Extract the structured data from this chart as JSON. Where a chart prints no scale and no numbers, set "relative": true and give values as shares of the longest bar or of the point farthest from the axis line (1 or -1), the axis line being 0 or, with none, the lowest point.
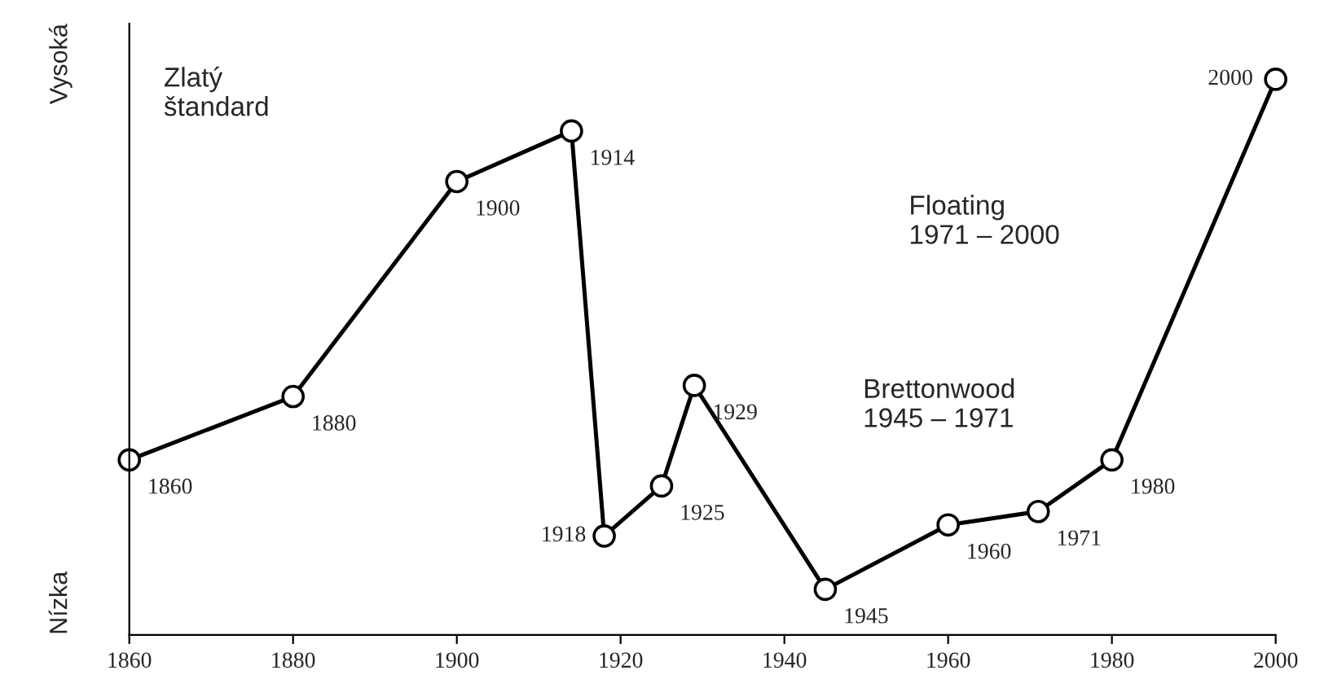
{
  "chart_data": {
    "type": "line",
    "relative": true,
    "x": [
      1860,
      1880,
      1900,
      1914,
      1918,
      1925,
      1929,
      1945,
      1960,
      1971,
      1980,
      2000
    ],
    "values": [
      0.315,
      0.429,
      0.816,
      0.907,
      0.178,
      0.268,
      0.449,
      0.082,
      0.198,
      0.222,
      0.315,
      1
    ],
    "color": "#000000",
    "marker": "circle",
    "line_style": "solid",
    "xlim": [
      1860,
      2000
    ],
    "xticks": [
      1860,
      1880,
      1900,
      1920,
      1940,
      1960,
      1980,
      2000
    ],
    "annotations": [
      "Vysoká",
      "Nízka",
      "Zlatý\nštandard",
      "Floating\n1971 – 2000",
      "Brettonwood\n1945 – 1971",
      {
        "text": "1860",
        "x": 1860,
        "y": 0.315
      },
      {
        "text": "1880",
        "x": 1880,
        "y": 0.429
      },
      {
        "text": "1900",
        "x": 1900,
        "y": 0.816
      },
      {
        "text": "1914",
        "x": 1914,
        "y": 0.907
      },
      {
        "text": "1918",
        "x": 1918,
        "y": 0.178
      },
      {
        "text": "1925",
        "x": 1925,
        "y": 0.268
      },
      {
        "text": "1929",
        "x": 1929,
        "y": 0.449
      },
      {
        "text": "1945",
        "x": 1945,
        "y": 0.082
      },
      {
        "text": "1960",
        "x": 1960,
        "y": 0.198
      },
      {
        "text": "1971",
        "x": 1971,
        "y": 0.222
      },
      {
        "text": "1980",
        "x": 1980,
        "y": 0.315
      },
      {
        "text": "2000",
        "x": 2000,
        "y": 1
      }
    ]
  }
}
